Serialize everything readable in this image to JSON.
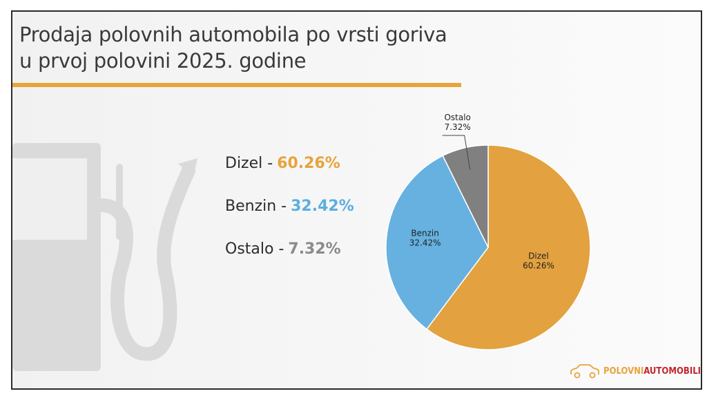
{
  "title": {
    "line1": "Prodaja polovnih automobila po vrsti goriva",
    "line2": "u prvoj polovini 2025. godine"
  },
  "legend": [
    {
      "label": "Dizel -",
      "value": "60.26%",
      "color": "#e8a33a"
    },
    {
      "label": "Benzin -",
      "value": "32.42%",
      "color": "#5aafe0"
    },
    {
      "label": "Ostalo -",
      "value": "7.32%",
      "color": "#8a8a8a"
    }
  ],
  "colors": {
    "dizel": "#e3a23f",
    "benzin": "#66b1e0",
    "ostalo": "#808080",
    "accent": "#e8a33a"
  },
  "logo": {
    "word1": "POLOVNI",
    "word2": "AUTOMOBILI",
    "icon": "car-outline-icon"
  },
  "chart_data": {
    "type": "pie",
    "title": "Prodaja polovnih automobila po vrsti goriva u prvoj polovini 2025. godine",
    "slices": [
      {
        "name": "Dizel",
        "value": 60.26,
        "label": "60.26%",
        "color": "#e3a23f"
      },
      {
        "name": "Benzin",
        "value": 32.42,
        "label": "32.42%",
        "color": "#66b1e0"
      },
      {
        "name": "Ostalo",
        "value": 7.32,
        "label": "7.32%",
        "color": "#808080"
      }
    ],
    "start_angle_deg": 0,
    "direction": "clockwise"
  }
}
